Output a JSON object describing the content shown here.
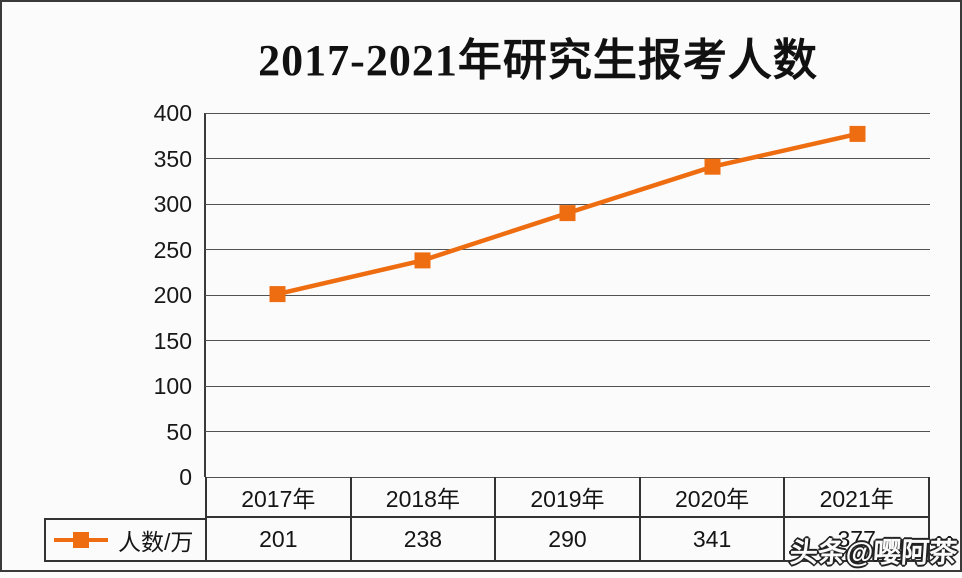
{
  "title": "2017-2021年研究生报考人数",
  "watermark": "头条@嘤阿茶",
  "chart_data": {
    "type": "line",
    "title": "2017-2021年研究生报考人数",
    "categories": [
      "2017年",
      "2018年",
      "2019年",
      "2020年",
      "2021年"
    ],
    "series": [
      {
        "name": "人数/万",
        "values": [
          201,
          238,
          290,
          341,
          377
        ]
      }
    ],
    "xlabel": "",
    "ylabel": "",
    "ylim": [
      0,
      400
    ],
    "yticks": [
      0,
      50,
      100,
      150,
      200,
      250,
      300,
      350,
      400
    ],
    "grid": true,
    "legend_position": "bottom-left-table",
    "line_color": "#ed6d10",
    "marker": "square",
    "marker_size": 16
  },
  "table": {
    "legend_label": "人数/万",
    "columns": [
      "2017年",
      "2018年",
      "2019年",
      "2020年",
      "2021年"
    ],
    "values": [
      "201",
      "238",
      "290",
      "341",
      "377"
    ]
  },
  "colors": {
    "accent": "#ed6d10",
    "grid": "#525252",
    "border": "#333333",
    "background": "#fcfbfc",
    "text": "#1c1c1c"
  }
}
